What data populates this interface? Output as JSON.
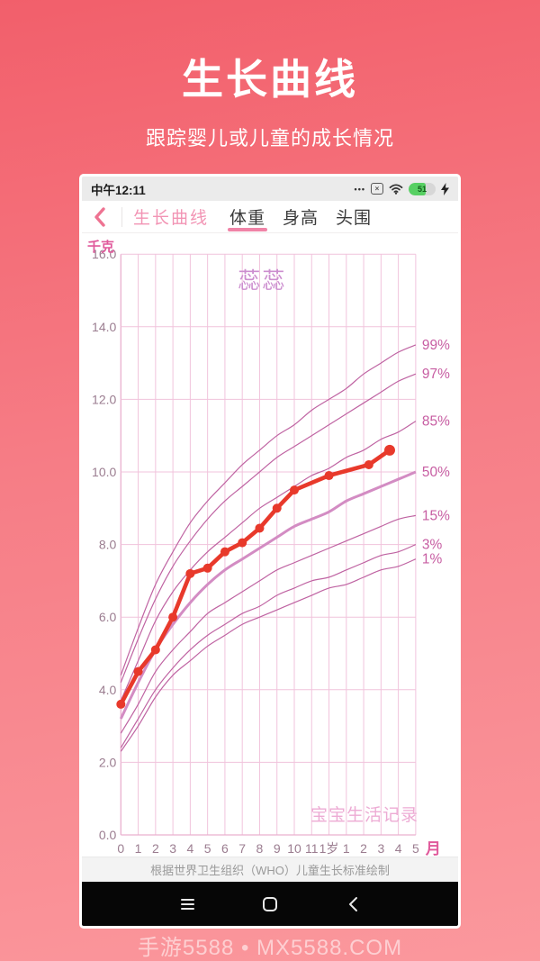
{
  "header": {
    "title": "生长曲线",
    "subtitle": "跟踪婴儿或儿童的成长情况"
  },
  "site_watermark": "手游5588 • MX5588.COM",
  "phone": {
    "status_bar": {
      "time": "中午12:11",
      "battery_percent": "51"
    },
    "nav": {
      "title": "生长曲线",
      "tabs": [
        {
          "label": "体重",
          "active": true
        },
        {
          "label": "身高",
          "active": false
        },
        {
          "label": "头围",
          "active": false
        }
      ]
    },
    "footer_note": "根据世界卫生组织（WHO）儿童生长标准绘制"
  },
  "chart_data": {
    "type": "line",
    "y_unit": "千克",
    "x_unit": "月",
    "ylim": [
      0,
      16
    ],
    "y_tick_step": 2,
    "x_tick_labels": [
      "0",
      "1",
      "2",
      "3",
      "4",
      "5",
      "6",
      "7",
      "8",
      "9",
      "10",
      "11",
      "1岁",
      "1",
      "2",
      "3",
      "4",
      "5"
    ],
    "watermark_top": "蕊蕊",
    "watermark_bottom": "宝宝生活记录",
    "colors": {
      "grid": "#f1c3dc",
      "axis": "#e9b0cf",
      "tick_label": "#9b7d90",
      "unit_label": "#e0599b",
      "percentile_line": "#bf63a2",
      "median_line": "#d38cc3",
      "percentile_label": "#c75da2",
      "series": "#e8392b",
      "watermark_top": "#cc8ecf",
      "watermark_bottom": "#edabd4"
    },
    "percentiles": [
      {
        "label": "99%",
        "emphasis": false,
        "values": [
          4.4,
          5.7,
          6.9,
          7.8,
          8.6,
          9.2,
          9.7,
          10.2,
          10.6,
          11.0,
          11.3,
          11.7,
          12.0,
          12.3,
          12.7,
          13.0,
          13.3,
          13.5
        ]
      },
      {
        "label": "97%",
        "emphasis": false,
        "values": [
          4.2,
          5.4,
          6.5,
          7.4,
          8.1,
          8.7,
          9.2,
          9.6,
          10.0,
          10.4,
          10.7,
          11.0,
          11.3,
          11.6,
          11.9,
          12.2,
          12.5,
          12.7
        ]
      },
      {
        "label": "85%",
        "emphasis": false,
        "values": [
          3.7,
          4.8,
          5.9,
          6.7,
          7.3,
          7.8,
          8.2,
          8.6,
          9.0,
          9.3,
          9.6,
          9.9,
          10.1,
          10.4,
          10.6,
          10.9,
          11.1,
          11.4
        ]
      },
      {
        "label": "50%",
        "emphasis": true,
        "values": [
          3.2,
          4.2,
          5.1,
          5.8,
          6.4,
          6.9,
          7.3,
          7.6,
          7.9,
          8.2,
          8.5,
          8.7,
          8.9,
          9.2,
          9.4,
          9.6,
          9.8,
          10.0
        ]
      },
      {
        "label": "15%",
        "emphasis": false,
        "values": [
          2.8,
          3.6,
          4.5,
          5.1,
          5.6,
          6.1,
          6.4,
          6.7,
          7.0,
          7.3,
          7.5,
          7.7,
          7.9,
          8.1,
          8.3,
          8.5,
          8.7,
          8.8
        ]
      },
      {
        "label": "3%",
        "emphasis": false,
        "values": [
          2.4,
          3.2,
          4.0,
          4.6,
          5.1,
          5.5,
          5.8,
          6.1,
          6.3,
          6.6,
          6.8,
          7.0,
          7.1,
          7.3,
          7.5,
          7.7,
          7.8,
          8.0
        ]
      },
      {
        "label": "1%",
        "emphasis": false,
        "values": [
          2.3,
          3.0,
          3.8,
          4.4,
          4.8,
          5.2,
          5.5,
          5.8,
          6.0,
          6.2,
          6.4,
          6.6,
          6.8,
          6.9,
          7.1,
          7.3,
          7.4,
          7.6
        ]
      }
    ],
    "series": {
      "name": "蕊蕊",
      "points": [
        [
          0,
          3.6
        ],
        [
          1,
          4.5
        ],
        [
          2,
          5.1
        ],
        [
          3,
          6.0
        ],
        [
          4,
          7.2
        ],
        [
          5,
          7.35
        ],
        [
          6,
          7.8
        ],
        [
          7,
          8.05
        ],
        [
          8,
          8.45
        ],
        [
          9,
          9.0
        ],
        [
          10,
          9.5
        ],
        [
          12,
          9.9
        ],
        [
          14.3,
          10.2
        ],
        [
          15.5,
          10.6
        ]
      ]
    }
  }
}
